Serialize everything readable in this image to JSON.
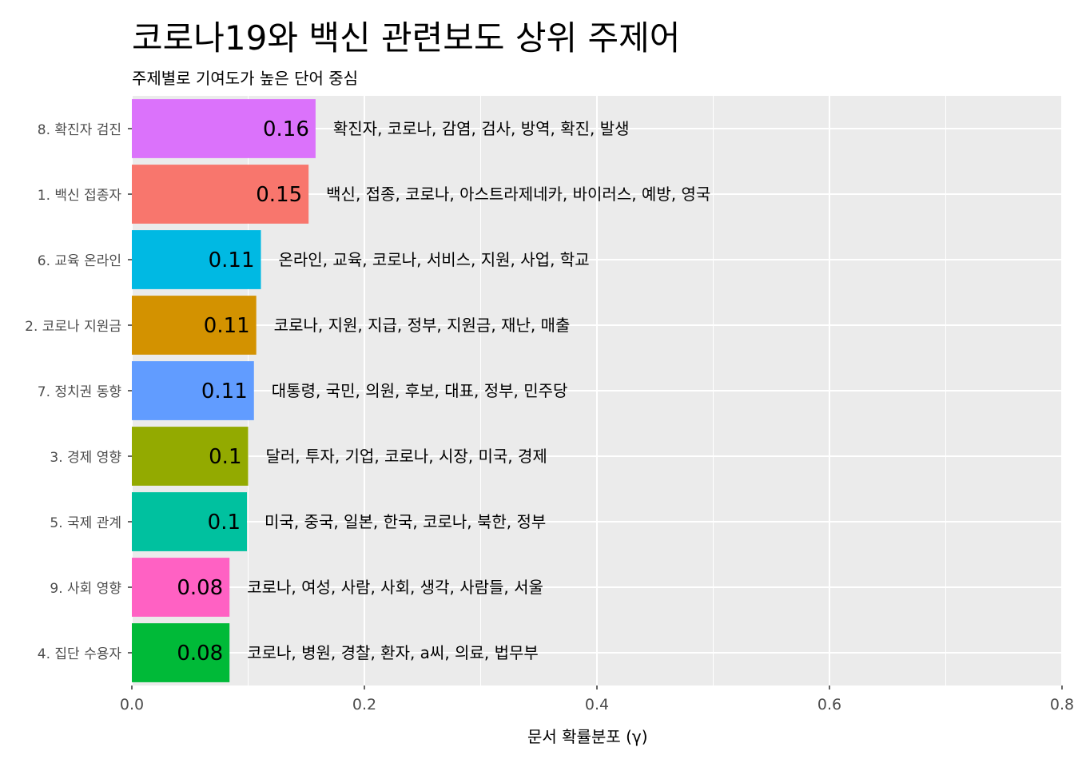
{
  "title": "코로나19와 백신 관련보도 상위 주제어",
  "subtitle": "주제별로 기여도가 높은 단어 중심",
  "chart_data": {
    "type": "bar",
    "orientation": "horizontal",
    "title": "코로나19와 백신 관련보도 상위 주제어",
    "subtitle": "주제별로 기여도가 높은 단어 중심",
    "xlabel": "문서 확률분포 (γ)",
    "ylabel": "",
    "xlim": [
      0,
      0.8
    ],
    "x_ticks": [
      "0.0",
      "0.2",
      "0.4",
      "0.6",
      "0.8"
    ],
    "grid": true,
    "legend": "none",
    "categories": [
      "8. 확진자 검진",
      "1. 백신 접종자",
      "6. 교육 온라인",
      "2. 코로나 지원금",
      "7. 정치권 동향",
      "3. 경제 영향",
      "5. 국제 관계",
      "9. 사회 영향",
      "4. 집단 수용자"
    ],
    "values": [
      0.158,
      0.152,
      0.111,
      0.107,
      0.105,
      0.1,
      0.099,
      0.084,
      0.084
    ],
    "value_labels": [
      "0.16",
      "0.15",
      "0.11",
      "0.11",
      "0.11",
      "0.1",
      "0.1",
      "0.08",
      "0.08"
    ],
    "terms": [
      "확진자, 코로나, 감염, 검사, 방역, 확진, 발생",
      "백신, 접종, 코로나, 아스트라제네카, 바이러스, 예방, 영국",
      "온라인, 교육, 코로나, 서비스, 지원, 사업, 학교",
      "코로나, 지원, 지급, 정부, 지원금, 재난, 매출",
      "대통령, 국민, 의원, 후보, 대표, 정부, 민주당",
      "달러, 투자, 기업, 코로나, 시장, 미국, 경제",
      "미국, 중국, 일본, 한국, 코로나, 북한, 정부",
      "코로나, 여성, 사람, 사회, 생각, 사람들, 서울",
      "코로나, 병원, 경찰, 환자, a씨, 의료, 법무부"
    ],
    "colors": [
      "#DB72FB",
      "#F8766D",
      "#00B9E3",
      "#D39200",
      "#619CFF",
      "#93AA00",
      "#00C19F",
      "#FF61C3",
      "#00BA38"
    ]
  }
}
